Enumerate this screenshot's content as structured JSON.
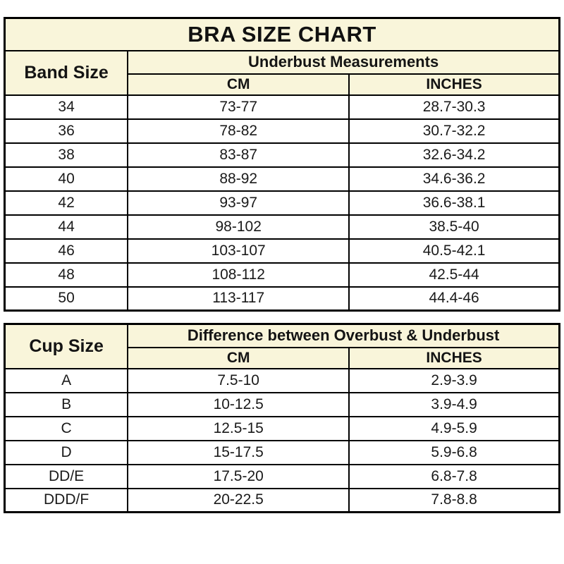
{
  "title": "BRA SIZE CHART",
  "colors": {
    "header_bg": "#F9F5DA",
    "row_bg": "#FFFFFF",
    "border": "#000000",
    "text": "#141414"
  },
  "band_table": {
    "corner_header": "Band Size",
    "group_header": "Underbust Measurements",
    "col_cm": "CM",
    "col_inches": "INCHES",
    "rows": [
      {
        "label": "34",
        "cm": "73-77",
        "inches": "28.7-30.3"
      },
      {
        "label": "36",
        "cm": "78-82",
        "inches": "30.7-32.2"
      },
      {
        "label": "38",
        "cm": "83-87",
        "inches": "32.6-34.2"
      },
      {
        "label": "40",
        "cm": "88-92",
        "inches": "34.6-36.2"
      },
      {
        "label": "42",
        "cm": "93-97",
        "inches": "36.6-38.1"
      },
      {
        "label": "44",
        "cm": "98-102",
        "inches": "38.5-40"
      },
      {
        "label": "46",
        "cm": "103-107",
        "inches": "40.5-42.1"
      },
      {
        "label": "48",
        "cm": "108-112",
        "inches": "42.5-44"
      },
      {
        "label": "50",
        "cm": "113-117",
        "inches": "44.4-46"
      }
    ]
  },
  "cup_table": {
    "corner_header": "Cup Size",
    "group_header": "Difference between Overbust & Underbust",
    "col_cm": "CM",
    "col_inches": "INCHES",
    "rows": [
      {
        "label": "A",
        "cm": "7.5-10",
        "inches": "2.9-3.9"
      },
      {
        "label": "B",
        "cm": "10-12.5",
        "inches": "3.9-4.9"
      },
      {
        "label": "C",
        "cm": "12.5-15",
        "inches": "4.9-5.9"
      },
      {
        "label": "D",
        "cm": "15-17.5",
        "inches": "5.9-6.8"
      },
      {
        "label": "DD/E",
        "cm": "17.5-20",
        "inches": "6.8-7.8"
      },
      {
        "label": "DDD/F",
        "cm": "20-22.5",
        "inches": "7.8-8.8"
      }
    ]
  },
  "chart_data": [
    {
      "type": "table",
      "title": "BRA SIZE CHART — Band Size vs Underbust Measurements",
      "columns": [
        "Band Size",
        "Underbust CM",
        "Underbust INCHES"
      ],
      "rows": [
        [
          "34",
          "73-77",
          "28.7-30.3"
        ],
        [
          "36",
          "78-82",
          "30.7-32.2"
        ],
        [
          "38",
          "83-87",
          "32.6-34.2"
        ],
        [
          "40",
          "88-92",
          "34.6-36.2"
        ],
        [
          "42",
          "93-97",
          "36.6-38.1"
        ],
        [
          "44",
          "98-102",
          "38.5-40"
        ],
        [
          "46",
          "103-107",
          "40.5-42.1"
        ],
        [
          "48",
          "108-112",
          "42.5-44"
        ],
        [
          "50",
          "113-117",
          "44.4-46"
        ]
      ]
    },
    {
      "type": "table",
      "title": "Cup Size vs Difference between Overbust & Underbust",
      "columns": [
        "Cup Size",
        "Difference CM",
        "Difference INCHES"
      ],
      "rows": [
        [
          "A",
          "7.5-10",
          "2.9-3.9"
        ],
        [
          "B",
          "10-12.5",
          "3.9-4.9"
        ],
        [
          "C",
          "12.5-15",
          "4.9-5.9"
        ],
        [
          "D",
          "15-17.5",
          "5.9-6.8"
        ],
        [
          "DD/E",
          "17.5-20",
          "6.8-7.8"
        ],
        [
          "DDD/F",
          "20-22.5",
          "7.8-8.8"
        ]
      ]
    }
  ]
}
